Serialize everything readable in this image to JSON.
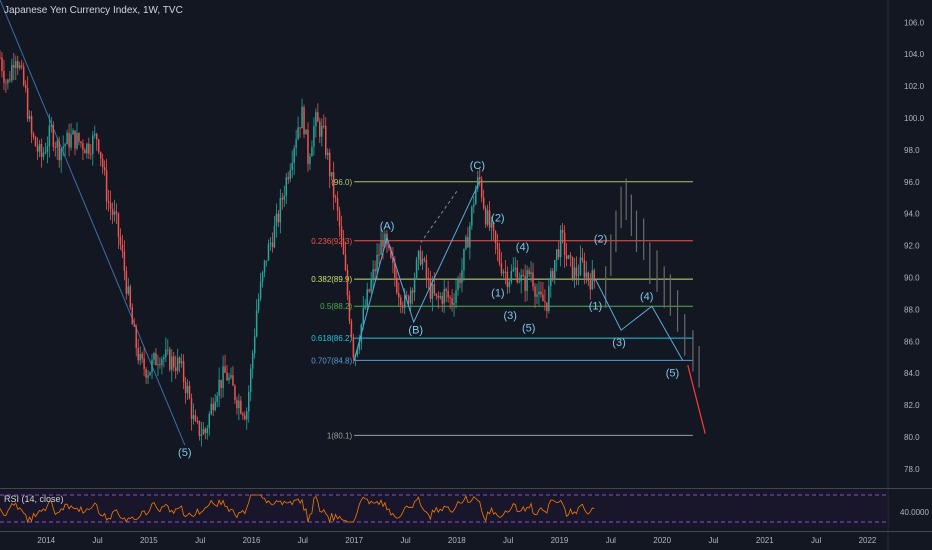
{
  "title": "Japanese Yen Currency Index, 1W, TVC",
  "rsi": {
    "label": "RSI (14, close)",
    "value_label": "40.0000",
    "upper": 70,
    "lower": 30
  },
  "colors": {
    "background": "#131722",
    "up": "#26a69a",
    "down": "#ef5350",
    "trendline": "#3d6ea8",
    "rsi": "#f57c00",
    "rsi_band": "#1f1433",
    "projection": "#6a6a6a",
    "forecast_red": "#ff3b3b"
  },
  "chart_data": {
    "type": "candlestick",
    "title": "Japanese Yen Currency Index, 1W, TVC",
    "y_ticks": [
      78.0,
      80.0,
      82.0,
      84.0,
      86.0,
      88.0,
      90.0,
      92.0,
      94.0,
      96.0,
      98.0,
      100.0,
      102.0,
      104.0,
      106.0
    ],
    "ylim": [
      76.8,
      107.4
    ],
    "xlim": [
      2013.55,
      2022.2
    ],
    "x_ticks": [
      {
        "label": "2014",
        "t": 2014.0
      },
      {
        "label": "Jul",
        "t": 2014.5
      },
      {
        "label": "2015",
        "t": 2015.0
      },
      {
        "label": "Jul",
        "t": 2015.5
      },
      {
        "label": "2016",
        "t": 2016.0
      },
      {
        "label": "Jul",
        "t": 2016.5
      },
      {
        "label": "2017",
        "t": 2017.0
      },
      {
        "label": "Jul",
        "t": 2017.5
      },
      {
        "label": "2018",
        "t": 2018.0
      },
      {
        "label": "Jul",
        "t": 2018.5
      },
      {
        "label": "2019",
        "t": 2019.0
      },
      {
        "label": "Jul",
        "t": 2019.5
      },
      {
        "label": "2020",
        "t": 2020.0
      },
      {
        "label": "Jul",
        "t": 2020.5
      },
      {
        "label": "2021",
        "t": 2021.0
      },
      {
        "label": "Jul",
        "t": 2021.5
      },
      {
        "label": "2022",
        "t": 2022.0
      }
    ],
    "price_path": [
      [
        2013.55,
        103.8
      ],
      [
        2013.62,
        102.0
      ],
      [
        2013.7,
        104.2
      ],
      [
        2013.8,
        101.5
      ],
      [
        2013.85,
        99.0
      ],
      [
        2013.95,
        97.5
      ],
      [
        2014.05,
        99.2
      ],
      [
        2014.12,
        98.0
      ],
      [
        2014.25,
        98.8
      ],
      [
        2014.4,
        98.2
      ],
      [
        2014.5,
        98.9
      ],
      [
        2014.55,
        97.0
      ],
      [
        2014.6,
        94.8
      ],
      [
        2014.68,
        93.5
      ],
      [
        2014.75,
        91.0
      ],
      [
        2014.85,
        86.5
      ],
      [
        2014.92,
        84.5
      ],
      [
        2015.0,
        84.2
      ],
      [
        2015.1,
        85.2
      ],
      [
        2015.2,
        84.8
      ],
      [
        2015.3,
        84.5
      ],
      [
        2015.38,
        82.8
      ],
      [
        2015.45,
        80.5
      ],
      [
        2015.55,
        80.3
      ],
      [
        2015.65,
        83.0
      ],
      [
        2015.75,
        84.0
      ],
      [
        2015.85,
        82.5
      ],
      [
        2015.95,
        81.5
      ],
      [
        2016.0,
        84.5
      ],
      [
        2016.05,
        88.0
      ],
      [
        2016.15,
        91.5
      ],
      [
        2016.25,
        93.5
      ],
      [
        2016.35,
        96.5
      ],
      [
        2016.45,
        99.5
      ],
      [
        2016.5,
        100.3
      ],
      [
        2016.55,
        97.5
      ],
      [
        2016.62,
        99.8
      ],
      [
        2016.7,
        99.0
      ],
      [
        2016.78,
        96.0
      ],
      [
        2016.85,
        93.5
      ],
      [
        2016.9,
        91.0
      ],
      [
        2016.95,
        88.0
      ],
      [
        2017.0,
        85.0
      ],
      [
        2017.05,
        86.5
      ],
      [
        2017.12,
        88.5
      ],
      [
        2017.2,
        90.5
      ],
      [
        2017.28,
        92.5
      ],
      [
        2017.35,
        91.0
      ],
      [
        2017.42,
        89.5
      ],
      [
        2017.5,
        88.2
      ],
      [
        2017.58,
        90.0
      ],
      [
        2017.65,
        91.5
      ],
      [
        2017.72,
        89.5
      ],
      [
        2017.8,
        88.5
      ],
      [
        2017.88,
        89.0
      ],
      [
        2017.95,
        88.5
      ],
      [
        2018.05,
        90.5
      ],
      [
        2018.12,
        93.0
      ],
      [
        2018.18,
        95.5
      ],
      [
        2018.22,
        96.2
      ],
      [
        2018.28,
        94.0
      ],
      [
        2018.35,
        92.5
      ],
      [
        2018.42,
        91.0
      ],
      [
        2018.5,
        90.0
      ],
      [
        2018.58,
        90.5
      ],
      [
        2018.65,
        89.5
      ],
      [
        2018.72,
        90.5
      ],
      [
        2018.8,
        88.5
      ],
      [
        2018.88,
        88.5
      ],
      [
        2018.95,
        91.0
      ],
      [
        2019.02,
        92.5
      ],
      [
        2019.08,
        91.0
      ],
      [
        2019.15,
        90.2
      ],
      [
        2019.22,
        90.8
      ],
      [
        2019.28,
        90.0
      ],
      [
        2019.35,
        89.8
      ]
    ],
    "fib_levels": [
      {
        "label": "(96.0)",
        "value": 96.0,
        "color": "#b0c46a"
      },
      {
        "label": "0.236(92.3)",
        "value": 92.3,
        "color": "#ef5350"
      },
      {
        "label": "0.382(89.9)",
        "value": 89.9,
        "color": "#c8e36c"
      },
      {
        "label": "0.5(88.2)",
        "value": 88.2,
        "color": "#4caf50"
      },
      {
        "label": "0.618(86.2)",
        "value": 86.2,
        "color": "#26c6da"
      },
      {
        "label": "0.707(84.8)",
        "value": 84.8,
        "color": "#5b9bd5"
      },
      {
        "label": "1(80.1)",
        "value": 80.1,
        "color": "#9e9e9e"
      }
    ],
    "fib_x_range": [
      2017.0,
      2020.3
    ],
    "downtrend_line": [
      [
        2013.55,
        107.4
      ],
      [
        2015.35,
        79.5
      ]
    ],
    "dashed_line": [
      [
        2018.0,
        95.4
      ],
      [
        2017.65,
        92.2
      ]
    ],
    "abc_path": [
      [
        2017.0,
        84.8
      ],
      [
        2017.32,
        92.5
      ],
      [
        2017.58,
        87.2
      ],
      [
        2018.22,
        96.0
      ]
    ],
    "projection_path": [
      [
        2019.35,
        89.9
      ],
      [
        2019.6,
        86.7
      ],
      [
        2019.9,
        88.2
      ],
      [
        2020.2,
        84.8
      ]
    ],
    "forecast_line": [
      [
        2020.25,
        84.5
      ],
      [
        2020.42,
        80.2
      ]
    ],
    "ghost_fractal": [
      [
        2019.45,
        89.5
      ],
      [
        2019.5,
        91.5
      ],
      [
        2019.55,
        93.0
      ],
      [
        2019.6,
        94.5
      ],
      [
        2019.65,
        95.0
      ],
      [
        2019.7,
        94.0
      ],
      [
        2019.75,
        93.0
      ],
      [
        2019.82,
        92.5
      ],
      [
        2019.88,
        91.0
      ],
      [
        2019.95,
        90.5
      ],
      [
        2020.02,
        89.5
      ],
      [
        2020.08,
        89.0
      ],
      [
        2020.15,
        88.0
      ],
      [
        2020.22,
        86.5
      ],
      [
        2020.3,
        85.5
      ],
      [
        2020.36,
        84.5
      ]
    ],
    "wave_labels": [
      {
        "text": "(A)",
        "t": 2017.32,
        "v": 93.0
      },
      {
        "text": "(B)",
        "t": 2017.6,
        "v": 86.5
      },
      {
        "text": "(C)",
        "t": 2018.2,
        "v": 96.8
      },
      {
        "text": "(2)",
        "t": 2018.4,
        "v": 93.5
      },
      {
        "text": "(4)",
        "t": 2018.64,
        "v": 91.7
      },
      {
        "text": "(1)",
        "t": 2018.4,
        "v": 88.8
      },
      {
        "text": "(3)",
        "t": 2018.52,
        "v": 87.4
      },
      {
        "text": "(5)",
        "t": 2018.7,
        "v": 86.6
      },
      {
        "text": "(2)",
        "t": 2019.4,
        "v": 92.2
      },
      {
        "text": "(1)",
        "t": 2019.35,
        "v": 88.0
      },
      {
        "text": "(4)",
        "t": 2019.85,
        "v": 88.6
      },
      {
        "text": "(3)",
        "t": 2019.58,
        "v": 85.7
      },
      {
        "text": "(5)",
        "t": 2020.1,
        "v": 83.8
      },
      {
        "text": "(5)",
        "t": 2015.35,
        "v": 78.8
      }
    ]
  }
}
